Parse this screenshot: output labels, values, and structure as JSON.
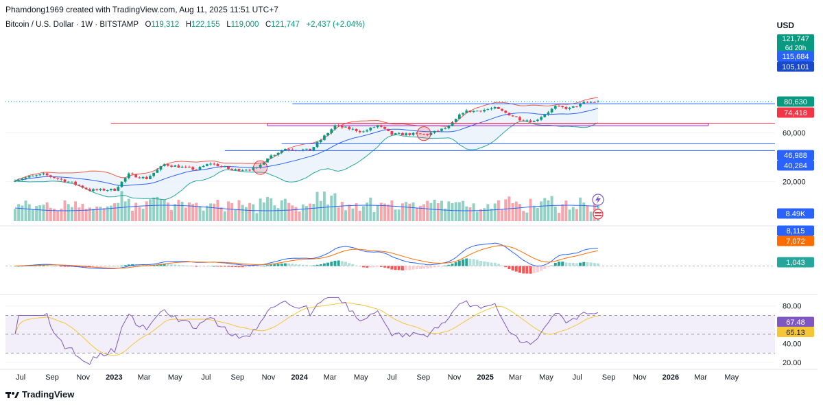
{
  "header": {
    "credit": "Phamdong1969 created with TradingView.com, Aug 11, 2025 11:51 UTC+7",
    "symbol": "Bitcoin / U.S. Dollar · 1W · BITSTAMP",
    "open_label": "O",
    "open": "119,312",
    "high_label": "H",
    "high": "122,155",
    "low_label": "L",
    "low": "119,000",
    "close_label": "C",
    "close": "121,747",
    "change": "+2,437 (+2.04%)",
    "currency": "USD"
  },
  "footer": {
    "brand": "TradingView"
  },
  "colors": {
    "up": "#089981",
    "down": "#f23645",
    "bb_upper": "#f05a44",
    "bb_basis": "#2962ff",
    "bb_lower": "#26a69a",
    "bb_fill": "#e8f1fb",
    "macd_line": "#2962ff",
    "signal_line": "#ff6d00",
    "rsi_line": "#7e57c2",
    "rsi_ma": "#f5c636",
    "rsi_band": "#f2effa",
    "level_blue": "#2962ff",
    "level_red": "#f23645",
    "zone": "#9c27b0"
  },
  "chart_data": [
    {
      "type": "candlestick",
      "title": "",
      "timeframe": "1W",
      "x_start": "2022-06-20",
      "x_end": "2025-08-11",
      "x_tick_labels": [
        "Jul",
        "Sep",
        "Nov",
        "2023",
        "Mar",
        "May",
        "Jul",
        "Sep",
        "Nov",
        "2024",
        "Mar",
        "May",
        "Jul",
        "Sep",
        "Nov",
        "2025",
        "Mar",
        "May",
        "Jul",
        "Sep",
        "Nov",
        "2026",
        "Mar",
        "May"
      ],
      "y_scale": "log",
      "y_tick_labels": [
        "60,000",
        "20,000"
      ],
      "close_anchors": [
        [
          "2022-06-20",
          21000
        ],
        [
          "2022-08-15",
          23500
        ],
        [
          "2022-10-10",
          19500
        ],
        [
          "2022-11-14",
          16500
        ],
        [
          "2023-01-02",
          16700
        ],
        [
          "2023-01-30",
          23500
        ],
        [
          "2023-03-06",
          21500
        ],
        [
          "2023-04-10",
          29500
        ],
        [
          "2023-06-12",
          26300
        ],
        [
          "2023-07-10",
          30300
        ],
        [
          "2023-08-21",
          26100
        ],
        [
          "2023-10-09",
          26800
        ],
        [
          "2023-10-30",
          34500
        ],
        [
          "2023-12-04",
          42000
        ],
        [
          "2024-01-22",
          40500
        ],
        [
          "2024-03-11",
          70500
        ],
        [
          "2024-05-06",
          61500
        ],
        [
          "2024-06-03",
          71000
        ],
        [
          "2024-07-01",
          58000
        ],
        [
          "2024-08-05",
          58500
        ],
        [
          "2024-09-09",
          58000
        ],
        [
          "2024-10-21",
          68500
        ],
        [
          "2024-11-18",
          96500
        ],
        [
          "2024-12-16",
          99000
        ],
        [
          "2025-01-20",
          104500
        ],
        [
          "2025-03-10",
          82000
        ],
        [
          "2025-04-07",
          78000
        ],
        [
          "2025-05-19",
          108000
        ],
        [
          "2025-06-16",
          104000
        ],
        [
          "2025-07-14",
          118000
        ],
        [
          "2025-08-11",
          121747
        ]
      ],
      "last_close": 121747,
      "bollinger_bands": {
        "upper_label": "",
        "basis_label": "",
        "lower_label": ""
      },
      "price_levels": [
        {
          "value": 115684,
          "color": "#2962ff"
        },
        {
          "value": 105101,
          "color": "#2962ff"
        },
        {
          "value": 80630,
          "color": "#089981"
        },
        {
          "value": 74418,
          "color": "#f23645"
        },
        {
          "value": 46988,
          "color": "#2962ff"
        },
        {
          "value": 40284,
          "color": "#2962ff"
        }
      ],
      "price_labels": {
        "last": "121,747",
        "countdown": "6d 20h",
        "level_a": "115,684",
        "level_b": "105,101",
        "level_c": "80,630",
        "level_d": "74,418",
        "level_e": "46,988",
        "level_f": "40,284"
      },
      "support_zone": {
        "low": 70500,
        "high": 74418,
        "start": "2023-10-30",
        "end": "2026-03-16"
      },
      "highlighted_touches": [
        "2023-10-16",
        "2024-09-02"
      ],
      "volume_label": "8.49K",
      "grid": true
    },
    {
      "type": "macd",
      "title": "",
      "macd_label": "8,115",
      "signal_label": "7,072",
      "histogram_label": "1,043",
      "zero_line": true
    },
    {
      "type": "rsi",
      "title": "",
      "rsi_label": "67.48",
      "rsi_ma_label": "65.13",
      "bands": [
        30,
        50,
        70
      ],
      "y_tick_labels": [
        "80.00",
        "40.00",
        "20.00"
      ]
    }
  ]
}
